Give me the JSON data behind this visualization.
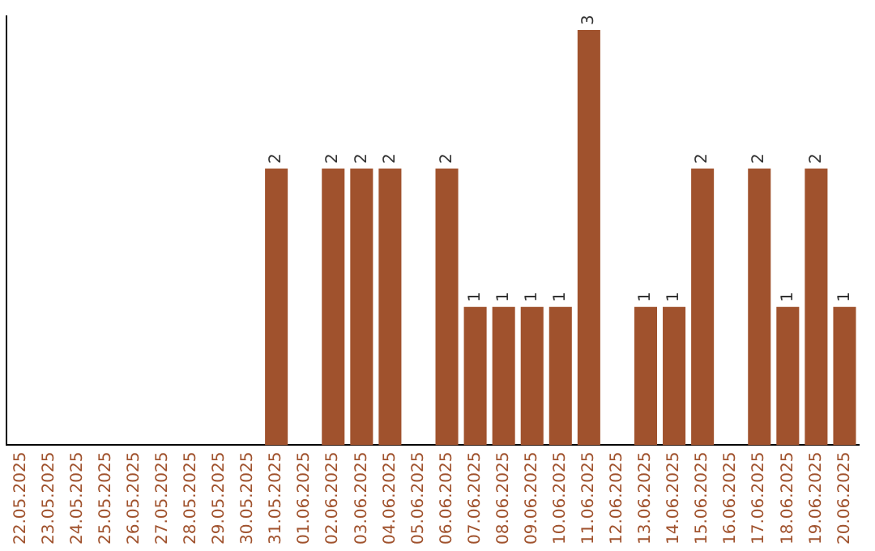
{
  "chart_data": {
    "type": "bar",
    "categories": [
      "22.05.2025",
      "23.05.2025",
      "24.05.2025",
      "25.05.2025",
      "26.05.2025",
      "27.05.2025",
      "28.05.2025",
      "29.05.2025",
      "30.05.2025",
      "31.05.2025",
      "01.06.2025",
      "02.06.2025",
      "03.06.2025",
      "04.06.2025",
      "05.06.2025",
      "06.06.2025",
      "07.06.2025",
      "08.06.2025",
      "09.06.2025",
      "10.06.2025",
      "11.06.2025",
      "12.06.2025",
      "13.06.2025",
      "14.06.2025",
      "15.06.2025",
      "16.06.2025",
      "17.06.2025",
      "18.06.2025",
      "19.06.2025",
      "20.06.2025"
    ],
    "values": [
      0,
      0,
      0,
      0,
      0,
      0,
      0,
      0,
      0,
      2,
      0,
      2,
      2,
      2,
      0,
      2,
      1,
      1,
      1,
      1,
      3,
      0,
      1,
      1,
      2,
      0,
      2,
      1,
      2,
      1
    ],
    "value_labels": [
      null,
      null,
      null,
      null,
      null,
      null,
      null,
      null,
      null,
      "2",
      null,
      "2",
      "2",
      "2",
      null,
      "2",
      "1",
      "1",
      "1",
      "1",
      "3",
      null,
      "1",
      "1",
      "2",
      null,
      "2",
      "1",
      "2",
      "1"
    ],
    "color": "#a0522d",
    "ylim": [
      0,
      3.1
    ],
    "tick_labels": "x",
    "grid": false,
    "legend": false
  }
}
